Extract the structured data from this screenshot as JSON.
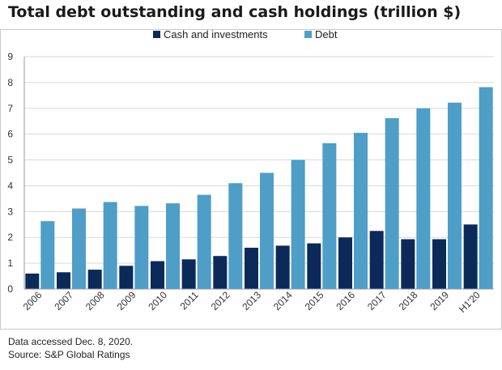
{
  "chart_data": {
    "type": "bar",
    "title": "Total debt outstanding and cash holdings (trillion $)",
    "xlabel": "",
    "ylabel": "",
    "ylim": [
      0,
      9
    ],
    "yticks": [
      "0",
      "1",
      "2",
      "3",
      "4",
      "5",
      "6",
      "7",
      "8",
      "9"
    ],
    "grid": true,
    "legend_position": "top-center",
    "categories": [
      "2006",
      "2007",
      "2008",
      "2009",
      "2010",
      "2011",
      "2012",
      "2013",
      "2014",
      "2015",
      "2016",
      "2017",
      "2018",
      "2019",
      "H1'20"
    ],
    "series": [
      {
        "name": "Cash and investments",
        "color": "#0b2a5a",
        "values": [
          0.6,
          0.65,
          0.75,
          0.9,
          1.08,
          1.15,
          1.28,
          1.6,
          1.68,
          1.77,
          2.0,
          2.25,
          1.93,
          1.93,
          2.5
        ]
      },
      {
        "name": "Debt",
        "color": "#4e9ec7",
        "values": [
          2.63,
          3.12,
          3.37,
          3.22,
          3.32,
          3.65,
          4.1,
          4.5,
          5.0,
          5.65,
          6.05,
          6.62,
          7.0,
          7.22,
          7.82
        ]
      }
    ]
  },
  "footnotes": {
    "line1": "Data accessed Dec. 8, 2020.",
    "line2": "Source: S&P Global Ratings"
  }
}
